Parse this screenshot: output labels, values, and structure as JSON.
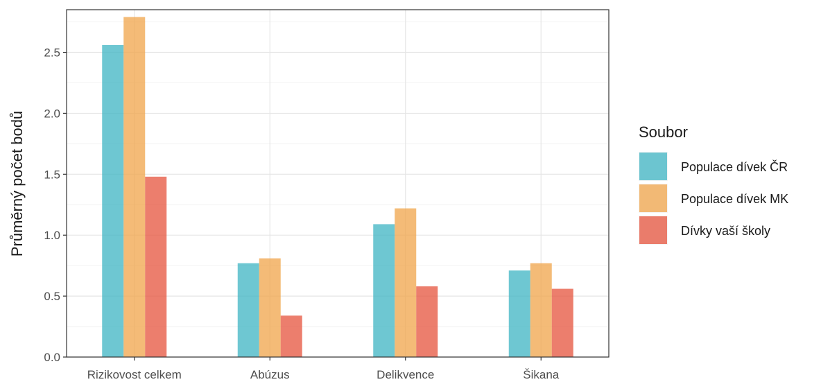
{
  "chart_data": {
    "type": "bar",
    "categories": [
      "Rizikovost celkem",
      "Abúzus",
      "Delikvence",
      "Šikana"
    ],
    "series": [
      {
        "name": "Populace dívek ČR",
        "values": [
          2.56,
          0.77,
          1.09,
          0.71
        ],
        "color": "#3db4c3"
      },
      {
        "name": "Populace dívek MK",
        "values": [
          2.79,
          0.81,
          1.22,
          0.77
        ],
        "color": "#f0a44a"
      },
      {
        "name": "Dívky vaší školy",
        "values": [
          1.48,
          0.34,
          0.58,
          0.56
        ],
        "color": "#e5533c"
      }
    ],
    "ylabel": "Průměrný počet bodů",
    "xlabel": "",
    "ylim": [
      0,
      2.85
    ],
    "yticks": [
      "0.0",
      "0.5",
      "1.0",
      "1.5",
      "2.0",
      "2.5"
    ],
    "legend_title": "Soubor",
    "legend_position": "right",
    "grid": true
  }
}
